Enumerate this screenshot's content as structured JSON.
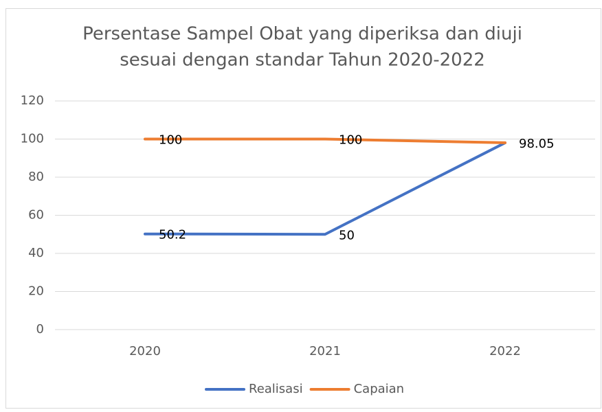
{
  "chart_data": {
    "type": "line",
    "title": [
      "Persentase Sampel Obat yang diperiksa dan diuji",
      "sesuai dengan standar Tahun 2020-2022"
    ],
    "categories": [
      "2020",
      "2021",
      "2022"
    ],
    "series": [
      {
        "name": "Realisasi",
        "color": "#4472c4",
        "values": [
          50.2,
          50,
          98.05
        ]
      },
      {
        "name": "Capaian",
        "color": "#ed7d31",
        "values": [
          100,
          100,
          98.05
        ]
      }
    ],
    "ylim": [
      0,
      120
    ],
    "yticks": [
      0,
      20,
      40,
      60,
      80,
      100,
      120
    ],
    "grid": true,
    "legend": "bottom"
  }
}
